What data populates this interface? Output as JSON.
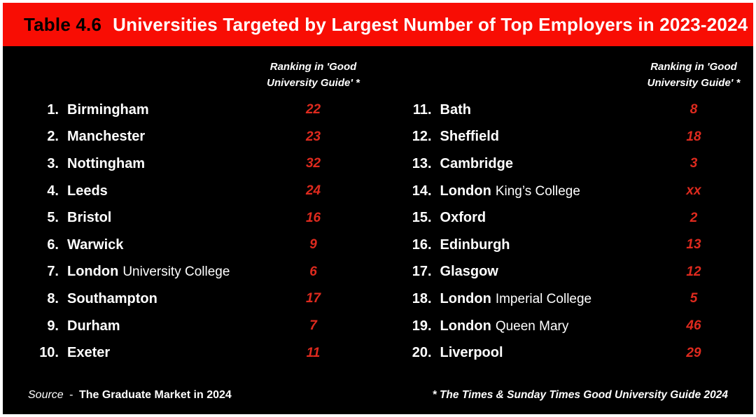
{
  "colors": {
    "header_bg": "#F80D04",
    "value_red": "#DE2A1E",
    "background": "#000000",
    "frame_border": "#FFFFFF",
    "text": "#FFFFFF",
    "title_label": "#000000"
  },
  "header": {
    "label": "Table 4.6",
    "title": "Universities Targeted by Largest Number of Top Employers in 2023-2024"
  },
  "column_header": "Ranking in 'Good\nUniversity Guide' *",
  "left_rows": [
    {
      "rank": "1.",
      "name": "Birmingham",
      "secondary": "",
      "value": "22"
    },
    {
      "rank": "2.",
      "name": "Manchester",
      "secondary": "",
      "value": "23"
    },
    {
      "rank": "3.",
      "name": "Nottingham",
      "secondary": "",
      "value": "32"
    },
    {
      "rank": "4.",
      "name": "Leeds",
      "secondary": "",
      "value": "24"
    },
    {
      "rank": "5.",
      "name": "Bristol",
      "secondary": "",
      "value": "16"
    },
    {
      "rank": "6.",
      "name": "Warwick",
      "secondary": "",
      "value": "9"
    },
    {
      "rank": "7.",
      "name": "London",
      "secondary": "University College",
      "value": "6"
    },
    {
      "rank": "8.",
      "name": "Southampton",
      "secondary": "",
      "value": "17"
    },
    {
      "rank": "9.",
      "name": "Durham",
      "secondary": "",
      "value": "7"
    },
    {
      "rank": "10.",
      "name": "Exeter",
      "secondary": "",
      "value": "11"
    }
  ],
  "right_rows": [
    {
      "rank": "11.",
      "name": "Bath",
      "secondary": "",
      "value": "8"
    },
    {
      "rank": "12.",
      "name": "Sheffield",
      "secondary": "",
      "value": "18"
    },
    {
      "rank": "13.",
      "name": "Cambridge",
      "secondary": "",
      "value": "3"
    },
    {
      "rank": "14.",
      "name": "London",
      "secondary": "King’s College",
      "value": "xx"
    },
    {
      "rank": "15.",
      "name": "Oxford",
      "secondary": "",
      "value": "2"
    },
    {
      "rank": "16.",
      "name": "Edinburgh",
      "secondary": "",
      "value": "13"
    },
    {
      "rank": "17.",
      "name": "Glasgow",
      "secondary": "",
      "value": "12"
    },
    {
      "rank": "18.",
      "name": "London",
      "secondary": "Imperial College",
      "value": "5"
    },
    {
      "rank": "19.",
      "name": "London",
      "secondary": "Queen Mary",
      "value": "46"
    },
    {
      "rank": "20.",
      "name": "Liverpool",
      "secondary": "",
      "value": "29"
    }
  ],
  "footer": {
    "source_label": "Source",
    "source_dash": "-",
    "source_text": "The Graduate Market in 2024",
    "footnote": "* The Times & Sunday Times Good University Guide 2024"
  },
  "chart_data": {
    "type": "table",
    "title": "Table 4.6 Universities Targeted by Largest Number of Top Employers in 2023-2024",
    "columns": [
      "Rank",
      "University",
      "Ranking in 'Good University Guide' *"
    ],
    "rows": [
      [
        1,
        "Birmingham",
        "22"
      ],
      [
        2,
        "Manchester",
        "23"
      ],
      [
        3,
        "Nottingham",
        "32"
      ],
      [
        4,
        "Leeds",
        "24"
      ],
      [
        5,
        "Bristol",
        "16"
      ],
      [
        6,
        "Warwick",
        "9"
      ],
      [
        7,
        "London University College",
        "6"
      ],
      [
        8,
        "Southampton",
        "17"
      ],
      [
        9,
        "Durham",
        "7"
      ],
      [
        10,
        "Exeter",
        "11"
      ],
      [
        11,
        "Bath",
        "8"
      ],
      [
        12,
        "Sheffield",
        "18"
      ],
      [
        13,
        "Cambridge",
        "3"
      ],
      [
        14,
        "London King’s College",
        "xx"
      ],
      [
        15,
        "Oxford",
        "2"
      ],
      [
        16,
        "Edinburgh",
        "13"
      ],
      [
        17,
        "Glasgow",
        "12"
      ],
      [
        18,
        "London Imperial College",
        "5"
      ],
      [
        19,
        "London Queen Mary",
        "46"
      ],
      [
        20,
        "Liverpool",
        "29"
      ]
    ],
    "source": "The Graduate Market in 2024",
    "footnote": "* The Times & Sunday Times Good University Guide 2024"
  }
}
